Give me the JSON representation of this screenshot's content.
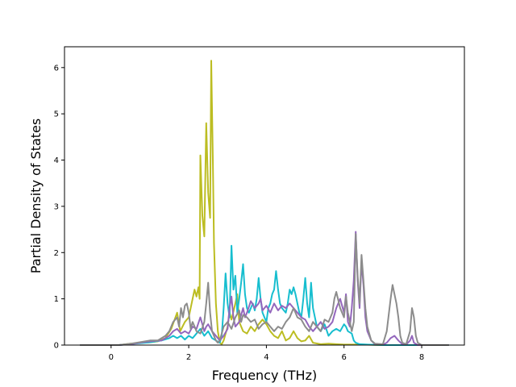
{
  "chart_data": {
    "type": "line",
    "title": "",
    "xlabel": "Frequency (THz)",
    "ylabel": "Partial Density of States",
    "xlim": [
      -1.2,
      9.1
    ],
    "ylim": [
      0,
      6.45
    ],
    "xticks": [
      0,
      2,
      4,
      6,
      8
    ],
    "yticks": [
      0,
      1,
      2,
      3,
      4,
      5,
      6
    ],
    "grid": false,
    "legend": "none",
    "series": [
      {
        "color": "#bcbd22",
        "points": [
          [
            -0.8,
            0
          ],
          [
            0.2,
            0
          ],
          [
            0.5,
            0.03
          ],
          [
            0.8,
            0.05
          ],
          [
            1.0,
            0.06
          ],
          [
            1.2,
            0.08
          ],
          [
            1.4,
            0.15
          ],
          [
            1.55,
            0.35
          ],
          [
            1.7,
            0.7
          ],
          [
            1.78,
            0.3
          ],
          [
            1.9,
            0.5
          ],
          [
            2.0,
            0.6
          ],
          [
            2.1,
            1.0
          ],
          [
            2.15,
            1.2
          ],
          [
            2.2,
            1.05
          ],
          [
            2.25,
            1.25
          ],
          [
            2.28,
            1.0
          ],
          [
            2.3,
            4.1
          ],
          [
            2.35,
            2.8
          ],
          [
            2.4,
            2.35
          ],
          [
            2.45,
            4.8
          ],
          [
            2.5,
            3.3
          ],
          [
            2.55,
            2.75
          ],
          [
            2.58,
            6.15
          ],
          [
            2.62,
            4.0
          ],
          [
            2.65,
            2.2
          ],
          [
            2.7,
            0.9
          ],
          [
            2.75,
            0.3
          ],
          [
            2.8,
            0.05
          ],
          [
            2.85,
            0.02
          ],
          [
            2.9,
            0.1
          ],
          [
            3.0,
            0.4
          ],
          [
            3.05,
            0.7
          ],
          [
            3.1,
            0.55
          ],
          [
            3.2,
            0.9
          ],
          [
            3.25,
            1.1
          ],
          [
            3.3,
            0.5
          ],
          [
            3.4,
            0.3
          ],
          [
            3.5,
            0.25
          ],
          [
            3.6,
            0.4
          ],
          [
            3.7,
            0.3
          ],
          [
            3.8,
            0.45
          ],
          [
            3.9,
            0.55
          ],
          [
            4.0,
            0.45
          ],
          [
            4.1,
            0.3
          ],
          [
            4.2,
            0.2
          ],
          [
            4.3,
            0.15
          ],
          [
            4.4,
            0.3
          ],
          [
            4.5,
            0.1
          ],
          [
            4.6,
            0.15
          ],
          [
            4.7,
            0.3
          ],
          [
            4.8,
            0.15
          ],
          [
            4.9,
            0.08
          ],
          [
            5.0,
            0.1
          ],
          [
            5.1,
            0.2
          ],
          [
            5.2,
            0.05
          ],
          [
            5.4,
            0.02
          ],
          [
            5.6,
            0.03
          ],
          [
            5.8,
            0.02
          ],
          [
            6.0,
            0.01
          ],
          [
            6.5,
            0.01
          ],
          [
            7.0,
            0
          ],
          [
            8.7,
            0
          ]
        ]
      },
      {
        "color": "#17becf",
        "points": [
          [
            -0.8,
            0
          ],
          [
            0.2,
            0
          ],
          [
            0.6,
            0.03
          ],
          [
            1.0,
            0.06
          ],
          [
            1.3,
            0.1
          ],
          [
            1.5,
            0.15
          ],
          [
            1.6,
            0.2
          ],
          [
            1.7,
            0.15
          ],
          [
            1.8,
            0.2
          ],
          [
            1.9,
            0.12
          ],
          [
            2.0,
            0.2
          ],
          [
            2.1,
            0.15
          ],
          [
            2.2,
            0.25
          ],
          [
            2.3,
            0.35
          ],
          [
            2.4,
            0.2
          ],
          [
            2.5,
            0.3
          ],
          [
            2.6,
            0.15
          ],
          [
            2.7,
            0.1
          ],
          [
            2.8,
            0.05
          ],
          [
            2.85,
            0.2
          ],
          [
            2.9,
            0.8
          ],
          [
            2.95,
            1.55
          ],
          [
            3.0,
            0.9
          ],
          [
            3.05,
            0.6
          ],
          [
            3.1,
            2.15
          ],
          [
            3.15,
            1.2
          ],
          [
            3.2,
            1.5
          ],
          [
            3.25,
            0.7
          ],
          [
            3.3,
            1.0
          ],
          [
            3.35,
            1.35
          ],
          [
            3.4,
            1.75
          ],
          [
            3.45,
            1.1
          ],
          [
            3.5,
            0.8
          ],
          [
            3.55,
            0.7
          ],
          [
            3.6,
            0.8
          ],
          [
            3.65,
            0.9
          ],
          [
            3.7,
            0.75
          ],
          [
            3.75,
            1.0
          ],
          [
            3.8,
            1.45
          ],
          [
            3.85,
            1.0
          ],
          [
            3.9,
            0.7
          ],
          [
            3.95,
            0.6
          ],
          [
            4.0,
            0.5
          ],
          [
            4.05,
            0.8
          ],
          [
            4.1,
            0.9
          ],
          [
            4.15,
            1.1
          ],
          [
            4.2,
            1.2
          ],
          [
            4.25,
            1.6
          ],
          [
            4.3,
            1.2
          ],
          [
            4.35,
            0.9
          ],
          [
            4.4,
            0.8
          ],
          [
            4.5,
            0.7
          ],
          [
            4.55,
            0.9
          ],
          [
            4.6,
            1.2
          ],
          [
            4.65,
            1.1
          ],
          [
            4.7,
            1.25
          ],
          [
            4.75,
            1.1
          ],
          [
            4.8,
            0.9
          ],
          [
            4.85,
            0.7
          ],
          [
            4.9,
            0.6
          ],
          [
            4.95,
            1.0
          ],
          [
            5.0,
            1.45
          ],
          [
            5.05,
            0.9
          ],
          [
            5.1,
            0.6
          ],
          [
            5.15,
            1.35
          ],
          [
            5.2,
            0.8
          ],
          [
            5.3,
            0.4
          ],
          [
            5.4,
            0.3
          ],
          [
            5.5,
            0.45
          ],
          [
            5.6,
            0.2
          ],
          [
            5.7,
            0.3
          ],
          [
            5.8,
            0.35
          ],
          [
            5.9,
            0.3
          ],
          [
            6.0,
            0.45
          ],
          [
            6.05,
            0.4
          ],
          [
            6.1,
            0.3
          ],
          [
            6.2,
            0.25
          ],
          [
            6.25,
            0.1
          ],
          [
            6.3,
            0.05
          ],
          [
            6.4,
            0.02
          ],
          [
            6.6,
            0.01
          ],
          [
            7.0,
            0
          ],
          [
            8.7,
            0
          ]
        ]
      },
      {
        "color": "#9467bd",
        "points": [
          [
            -0.8,
            0
          ],
          [
            0.2,
            0
          ],
          [
            0.5,
            0.02
          ],
          [
            0.8,
            0.06
          ],
          [
            1.0,
            0.08
          ],
          [
            1.3,
            0.1
          ],
          [
            1.5,
            0.2
          ],
          [
            1.6,
            0.3
          ],
          [
            1.7,
            0.35
          ],
          [
            1.8,
            0.25
          ],
          [
            1.9,
            0.3
          ],
          [
            2.0,
            0.25
          ],
          [
            2.1,
            0.4
          ],
          [
            2.2,
            0.35
          ],
          [
            2.3,
            0.6
          ],
          [
            2.35,
            0.45
          ],
          [
            2.4,
            0.3
          ],
          [
            2.45,
            0.4
          ],
          [
            2.5,
            0.45
          ],
          [
            2.6,
            0.3
          ],
          [
            2.7,
            0.2
          ],
          [
            2.8,
            0.1
          ],
          [
            2.9,
            0.2
          ],
          [
            3.0,
            0.35
          ],
          [
            3.05,
            0.8
          ],
          [
            3.1,
            1.05
          ],
          [
            3.15,
            0.6
          ],
          [
            3.2,
            0.4
          ],
          [
            3.3,
            0.5
          ],
          [
            3.4,
            0.8
          ],
          [
            3.45,
            0.6
          ],
          [
            3.5,
            0.7
          ],
          [
            3.6,
            0.95
          ],
          [
            3.7,
            0.8
          ],
          [
            3.8,
            0.9
          ],
          [
            3.85,
            1.0
          ],
          [
            3.9,
            0.75
          ],
          [
            4.0,
            0.85
          ],
          [
            4.1,
            0.7
          ],
          [
            4.2,
            0.9
          ],
          [
            4.3,
            0.75
          ],
          [
            4.4,
            0.85
          ],
          [
            4.5,
            0.8
          ],
          [
            4.6,
            0.9
          ],
          [
            4.7,
            0.8
          ],
          [
            4.8,
            0.7
          ],
          [
            4.9,
            0.6
          ],
          [
            5.0,
            0.55
          ],
          [
            5.1,
            0.4
          ],
          [
            5.2,
            0.3
          ],
          [
            5.3,
            0.4
          ],
          [
            5.4,
            0.5
          ],
          [
            5.5,
            0.35
          ],
          [
            5.6,
            0.4
          ],
          [
            5.7,
            0.5
          ],
          [
            5.8,
            0.8
          ],
          [
            5.9,
            1.0
          ],
          [
            6.0,
            0.7
          ],
          [
            6.05,
            1.1
          ],
          [
            6.1,
            0.5
          ],
          [
            6.15,
            0.4
          ],
          [
            6.2,
            0.8
          ],
          [
            6.25,
            1.4
          ],
          [
            6.3,
            2.45
          ],
          [
            6.35,
            1.4
          ],
          [
            6.4,
            0.8
          ],
          [
            6.45,
            1.8
          ],
          [
            6.5,
            1.3
          ],
          [
            6.55,
            0.6
          ],
          [
            6.6,
            0.3
          ],
          [
            6.7,
            0.1
          ],
          [
            6.8,
            0.02
          ],
          [
            7.0,
            0.01
          ],
          [
            7.1,
            0.05
          ],
          [
            7.2,
            0.15
          ],
          [
            7.3,
            0.2
          ],
          [
            7.4,
            0.1
          ],
          [
            7.5,
            0.02
          ],
          [
            7.6,
            0.01
          ],
          [
            7.7,
            0.1
          ],
          [
            7.75,
            0.2
          ],
          [
            7.8,
            0.05
          ],
          [
            7.9,
            0
          ],
          [
            8.7,
            0
          ]
        ]
      },
      {
        "color": "#8c8c8c",
        "points": [
          [
            -0.8,
            0
          ],
          [
            0.2,
            0
          ],
          [
            0.5,
            0.03
          ],
          [
            0.8,
            0.07
          ],
          [
            1.0,
            0.1
          ],
          [
            1.2,
            0.1
          ],
          [
            1.4,
            0.2
          ],
          [
            1.5,
            0.3
          ],
          [
            1.6,
            0.5
          ],
          [
            1.7,
            0.6
          ],
          [
            1.75,
            0.4
          ],
          [
            1.8,
            0.8
          ],
          [
            1.85,
            0.6
          ],
          [
            1.9,
            0.85
          ],
          [
            1.95,
            0.9
          ],
          [
            2.0,
            0.7
          ],
          [
            2.05,
            0.35
          ],
          [
            2.1,
            0.5
          ],
          [
            2.2,
            0.3
          ],
          [
            2.3,
            0.25
          ],
          [
            2.4,
            0.5
          ],
          [
            2.45,
            0.9
          ],
          [
            2.5,
            1.35
          ],
          [
            2.55,
            0.7
          ],
          [
            2.6,
            0.3
          ],
          [
            2.7,
            0.1
          ],
          [
            2.75,
            0.05
          ],
          [
            2.8,
            0.1
          ],
          [
            2.9,
            0.4
          ],
          [
            3.0,
            0.5
          ],
          [
            3.1,
            0.35
          ],
          [
            3.2,
            0.6
          ],
          [
            3.3,
            0.75
          ],
          [
            3.35,
            0.5
          ],
          [
            3.4,
            0.65
          ],
          [
            3.5,
            0.6
          ],
          [
            3.6,
            0.5
          ],
          [
            3.7,
            0.55
          ],
          [
            3.8,
            0.35
          ],
          [
            3.9,
            0.45
          ],
          [
            4.0,
            0.5
          ],
          [
            4.1,
            0.4
          ],
          [
            4.2,
            0.3
          ],
          [
            4.3,
            0.4
          ],
          [
            4.4,
            0.35
          ],
          [
            4.5,
            0.5
          ],
          [
            4.6,
            0.6
          ],
          [
            4.7,
            0.8
          ],
          [
            4.8,
            0.6
          ],
          [
            4.9,
            0.55
          ],
          [
            5.0,
            0.4
          ],
          [
            5.1,
            0.3
          ],
          [
            5.2,
            0.5
          ],
          [
            5.3,
            0.4
          ],
          [
            5.4,
            0.3
          ],
          [
            5.5,
            0.55
          ],
          [
            5.6,
            0.5
          ],
          [
            5.7,
            0.7
          ],
          [
            5.75,
            1.0
          ],
          [
            5.8,
            1.15
          ],
          [
            5.9,
            0.8
          ],
          [
            6.0,
            0.6
          ],
          [
            6.05,
            1.05
          ],
          [
            6.1,
            0.7
          ],
          [
            6.2,
            0.3
          ],
          [
            6.25,
            0.5
          ],
          [
            6.3,
            2.4
          ],
          [
            6.35,
            1.5
          ],
          [
            6.4,
            0.9
          ],
          [
            6.45,
            1.95
          ],
          [
            6.5,
            1.4
          ],
          [
            6.55,
            0.8
          ],
          [
            6.6,
            0.4
          ],
          [
            6.7,
            0.1
          ],
          [
            6.8,
            0.03
          ],
          [
            7.0,
            0.02
          ],
          [
            7.1,
            0.3
          ],
          [
            7.2,
            1.0
          ],
          [
            7.25,
            1.3
          ],
          [
            7.3,
            1.1
          ],
          [
            7.35,
            0.9
          ],
          [
            7.4,
            0.6
          ],
          [
            7.45,
            0.2
          ],
          [
            7.5,
            0.05
          ],
          [
            7.6,
            0.02
          ],
          [
            7.7,
            0.3
          ],
          [
            7.75,
            0.8
          ],
          [
            7.8,
            0.6
          ],
          [
            7.85,
            0.2
          ],
          [
            7.9,
            0.05
          ],
          [
            8.0,
            0
          ],
          [
            8.7,
            0
          ]
        ]
      }
    ]
  }
}
